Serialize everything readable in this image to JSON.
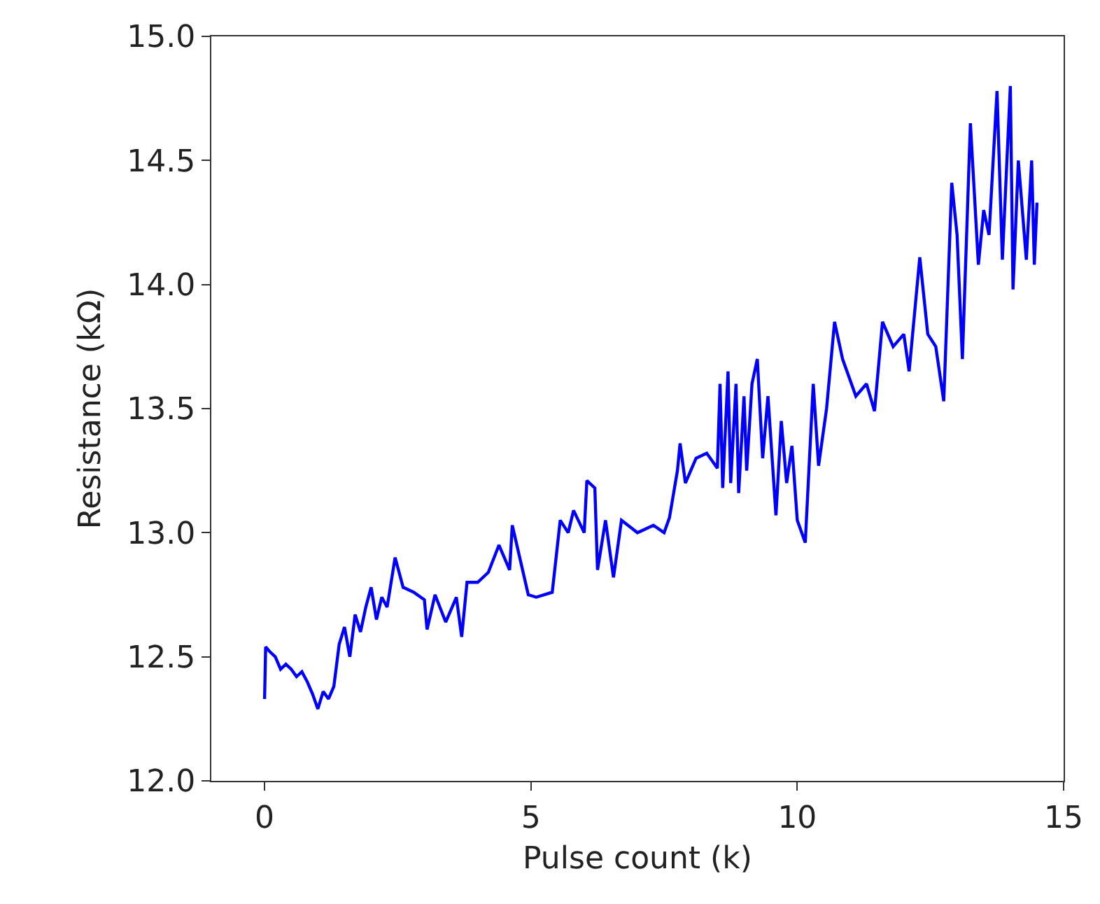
{
  "chart_data": {
    "type": "line",
    "xlabel": "Pulse count (k)",
    "ylabel": "Resistance (kΩ)",
    "xlim": [
      -1,
      15
    ],
    "xticks": [
      0,
      5,
      10,
      15
    ],
    "ylim": [
      12.0,
      15.0
    ],
    "yticks": [
      {
        "value": 12.0,
        "label": "12.0"
      },
      {
        "value": 12.5,
        "label": "12.5"
      },
      {
        "value": 13.0,
        "label": "13.0"
      },
      {
        "value": 13.5,
        "label": "13.5"
      },
      {
        "value": 14.0,
        "label": "14.0"
      },
      {
        "value": 14.5,
        "label": "14.5"
      },
      {
        "value": 15.0,
        "label": "15.0"
      }
    ],
    "legend": false,
    "marker": "none",
    "line_style": "solid",
    "series": [
      {
        "color": "#0000ff",
        "x": [
          0,
          0.02,
          0.1,
          0.2,
          0.3,
          0.4,
          0.5,
          0.6,
          0.7,
          0.8,
          0.9,
          1.0,
          1.1,
          1.2,
          1.3,
          1.4,
          1.5,
          1.6,
          1.7,
          1.8,
          1.9,
          2.0,
          2.1,
          2.2,
          2.3,
          2.45,
          2.6,
          2.8,
          3.0,
          3.05,
          3.2,
          3.4,
          3.6,
          3.7,
          3.8,
          4.0,
          4.2,
          4.4,
          4.6,
          4.65,
          4.8,
          4.95,
          5.1,
          5.4,
          5.55,
          5.7,
          5.8,
          6.0,
          6.05,
          6.2,
          6.25,
          6.4,
          6.55,
          6.7,
          7.0,
          7.3,
          7.5,
          7.6,
          7.75,
          7.8,
          7.9,
          8.1,
          8.3,
          8.5,
          8.55,
          8.6,
          8.7,
          8.75,
          8.85,
          8.9,
          9.0,
          9.05,
          9.15,
          9.25,
          9.35,
          9.45,
          9.6,
          9.7,
          9.8,
          9.9,
          10.0,
          10.15,
          10.3,
          10.4,
          10.55,
          10.7,
          10.85,
          11.1,
          11.3,
          11.45,
          11.6,
          11.8,
          12.0,
          12.1,
          12.3,
          12.45,
          12.6,
          12.75,
          12.9,
          13.0,
          13.1,
          13.25,
          13.4,
          13.5,
          13.6,
          13.75,
          13.85,
          14.0,
          14.05,
          14.15,
          14.3,
          14.4,
          14.45,
          14.5
        ],
        "values": [
          12.33,
          12.54,
          12.52,
          12.5,
          12.45,
          12.47,
          12.45,
          12.42,
          12.44,
          12.4,
          12.35,
          12.29,
          12.36,
          12.33,
          12.38,
          12.55,
          12.62,
          12.5,
          12.67,
          12.6,
          12.7,
          12.78,
          12.65,
          12.74,
          12.7,
          12.9,
          12.78,
          12.76,
          12.73,
          12.61,
          12.75,
          12.64,
          12.74,
          12.58,
          12.8,
          12.8,
          12.84,
          12.95,
          12.85,
          13.03,
          12.89,
          12.75,
          12.74,
          12.76,
          13.05,
          13.0,
          13.09,
          13.0,
          13.21,
          13.18,
          12.85,
          13.05,
          12.82,
          13.05,
          13.0,
          13.03,
          13.0,
          13.06,
          13.25,
          13.36,
          13.2,
          13.3,
          13.32,
          13.26,
          13.6,
          13.18,
          13.65,
          13.2,
          13.6,
          13.16,
          13.55,
          13.25,
          13.6,
          13.7,
          13.3,
          13.55,
          13.07,
          13.45,
          13.2,
          13.35,
          13.05,
          12.96,
          13.6,
          13.27,
          13.5,
          13.85,
          13.7,
          13.55,
          13.6,
          13.49,
          13.85,
          13.75,
          13.8,
          13.65,
          14.11,
          13.8,
          13.75,
          13.53,
          14.41,
          14.2,
          13.7,
          14.65,
          14.08,
          14.3,
          14.2,
          14.78,
          14.1,
          14.8,
          13.98,
          14.5,
          14.1,
          14.5,
          14.08,
          14.33
        ]
      }
    ]
  }
}
